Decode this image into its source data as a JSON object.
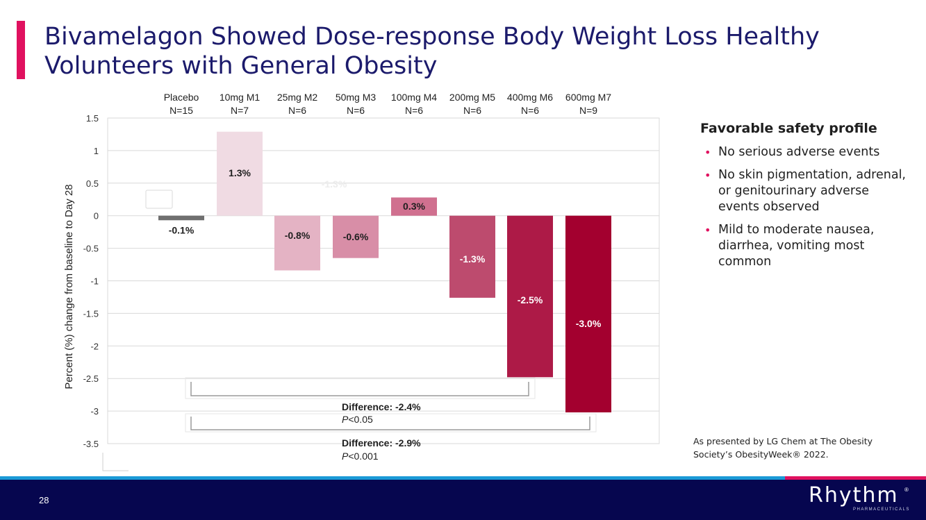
{
  "slide": {
    "title": "Bivamelagon Showed Dose-response Body Weight Loss Healthy Volunteers with General Obesity",
    "page_number": "28"
  },
  "panel": {
    "heading": "Favorable safety profile",
    "bullets": [
      "No serious adverse events",
      "No skin pigmentation, adrenal, or genitourinary adverse events observed",
      "Mild to moderate nausea, diarrhea, vomiting most common"
    ]
  },
  "source_note": "As presented by LG Chem at The Obesity Society’s ObesityWeek® 2022.",
  "logo": {
    "name": "Rhythm",
    "tagline": "PHARMACEUTICALS",
    "mark": "®"
  },
  "colors": {
    "accent": "#e0115f",
    "title": "#1b1a6b",
    "footer_bg": "#06064f",
    "stripe_blue": "#1b9ad6"
  },
  "chart_data": {
    "type": "bar",
    "ylabel": "Percent (%) change from baseline to Day 28",
    "ylim": [
      -3.5,
      1.5
    ],
    "yticks": [
      "1.5",
      "1",
      "0.5",
      "0",
      "-0.5",
      "-1",
      "-1.5",
      "-2",
      "-2.5",
      "-3",
      "-3.5"
    ],
    "ytick_values": [
      1.5,
      1,
      0.5,
      0,
      -0.5,
      -1,
      -1.5,
      -2,
      -2.5,
      -3,
      -3.5
    ],
    "grid": true,
    "categories": [
      {
        "label": "Placebo",
        "n": "N=15"
      },
      {
        "label": "10mg M1",
        "n": "N=7"
      },
      {
        "label": "25mg M2",
        "n": "N=6"
      },
      {
        "label": "50mg M3",
        "n": "N=6"
      },
      {
        "label": "100mg M4",
        "n": "N=6"
      },
      {
        "label": "200mg M5",
        "n": "N=6"
      },
      {
        "label": "400mg M6",
        "n": "N=6"
      },
      {
        "label": "600mg M7",
        "n": "N=9"
      }
    ],
    "values": [
      -0.07,
      1.29,
      -0.84,
      -0.65,
      0.28,
      -1.26,
      -2.48,
      -3.02
    ],
    "data_labels": [
      "-0.1%",
      "1.3%",
      "-0.8%",
      "-0.6%",
      "0.3%",
      "-1.3%",
      "-2.5%",
      "-3.0%"
    ],
    "bar_colors": [
      "#6f6f6f",
      "#f0dbe3",
      "#e4b3c4",
      "#d88ea7",
      "#d0708f",
      "#bd4b6e",
      "#ad1a47",
      "#a3002f"
    ],
    "ghost_label": "-1.3%",
    "comparisons": [
      {
        "from": "Placebo",
        "to": "400mg M6",
        "label": "Difference: -2.4%",
        "p": "<0.05"
      },
      {
        "from": "Placebo",
        "to": "600mg M7",
        "label": "Difference: -2.9%",
        "p": "<0.001"
      }
    ],
    "p_symbol": "P"
  }
}
